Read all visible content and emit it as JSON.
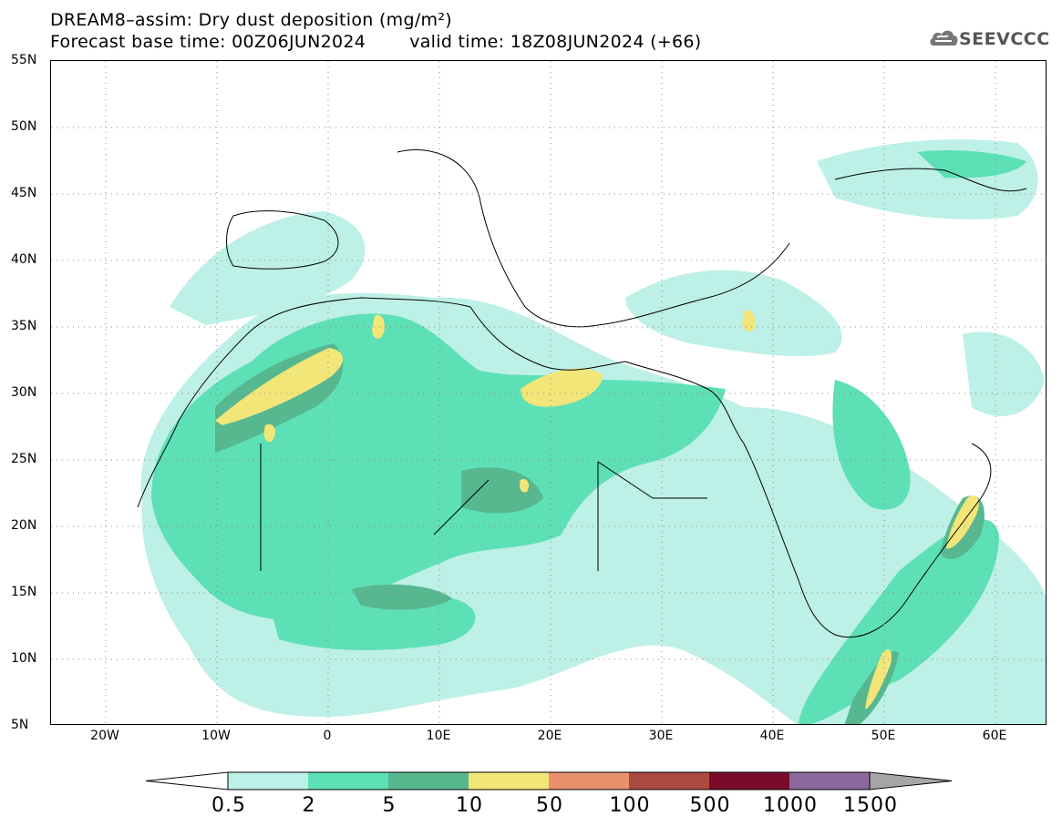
{
  "header": {
    "title_line1": "DREAM8–assim: Dry dust deposition (mg/m²)",
    "base_time": "Forecast base time: 00Z06JUN2024",
    "valid_time": "valid time: 18Z08JUN2024 (+66)"
  },
  "logo": {
    "text": "SEEVCCC",
    "icon": "cloud-logo-icon"
  },
  "map": {
    "lat_labels": [
      "55N",
      "50N",
      "45N",
      "40N",
      "35N",
      "30N",
      "25N",
      "20N",
      "15N",
      "10N",
      "5N"
    ],
    "lon_labels": [
      "20W",
      "10W",
      "0",
      "10E",
      "20E",
      "30E",
      "40E",
      "50E",
      "60E"
    ]
  },
  "colorbar": {
    "labels": [
      "0.5",
      "2",
      "5",
      "10",
      "50",
      "100",
      "500",
      "1000",
      "1500"
    ],
    "colors": [
      "#bdf0e6",
      "#5ee0b6",
      "#57b890",
      "#f2e679",
      "#e9906c",
      "#ab4a3e",
      "#7a0b2a",
      "#8a6a9c",
      "#a6a6a6"
    ]
  }
}
